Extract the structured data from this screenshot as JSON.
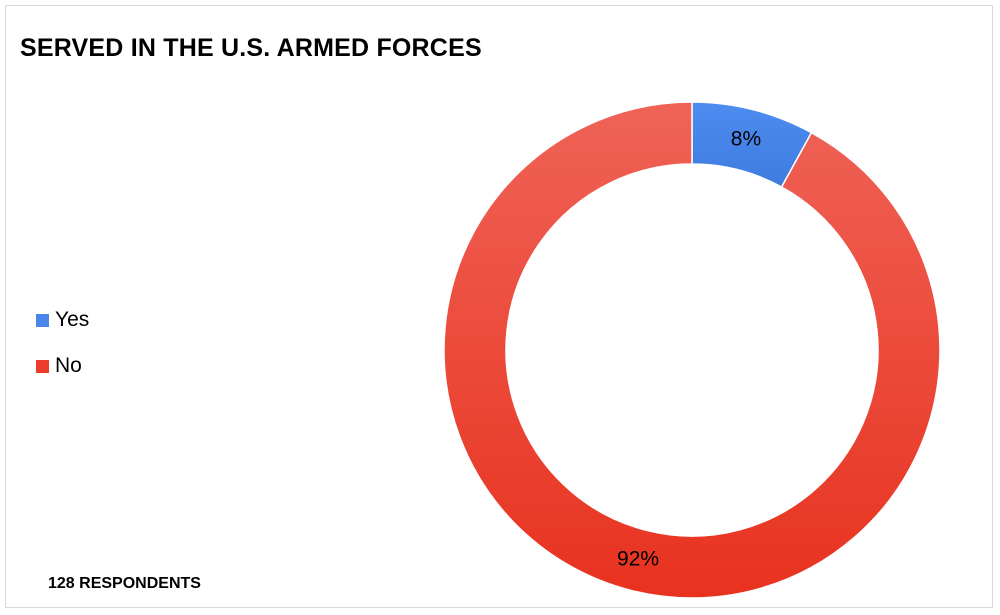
{
  "chart_data": {
    "type": "pie",
    "title": "SERVED IN THE U.S. ARMED FORCES",
    "categories": [
      "Yes",
      "No"
    ],
    "values": [
      8,
      92
    ],
    "value_labels": [
      "8%",
      "92%"
    ],
    "colors": [
      "#4a86e8",
      "#ea3b2b"
    ],
    "donut": true,
    "legend_position": "left",
    "annotation": "128 RESPONDENTS"
  }
}
